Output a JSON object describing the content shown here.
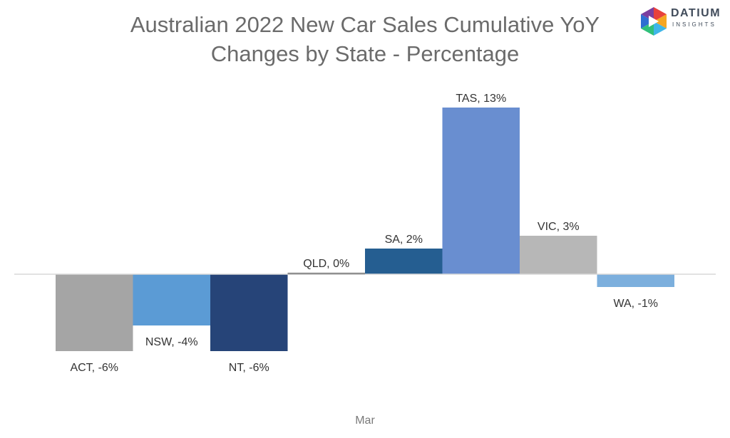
{
  "title_lines": [
    "Australian 2022 New Car Sales Cumulative YoY",
    "Changes by State - Percentage"
  ],
  "logo": {
    "name": "DATIUM",
    "sub": "INSIGHTS"
  },
  "chart_data": {
    "type": "bar",
    "title": "Australian 2022 New Car Sales Cumulative YoY Changes by State - Percentage",
    "categories": [
      "Mar"
    ],
    "x_category_label": "Mar",
    "ylim": [
      -8.5,
      15
    ],
    "grid": false,
    "legend": "none",
    "series": [
      {
        "name": "ACT",
        "value": -6,
        "label": "ACT, -6%",
        "color": "#a5a5a5"
      },
      {
        "name": "NSW",
        "value": -4,
        "label": "NSW, -4%",
        "color": "#5b9bd5"
      },
      {
        "name": "NT",
        "value": -6,
        "label": "NT, -6%",
        "color": "#264478"
      },
      {
        "name": "QLD",
        "value": 0,
        "label": "QLD, 0%",
        "color": "#636363"
      },
      {
        "name": "SA",
        "value": 2,
        "label": "SA, 2%",
        "color": "#255e91"
      },
      {
        "name": "TAS",
        "value": 13,
        "label": "TAS, 13%",
        "color": "#698ed0"
      },
      {
        "name": "VIC",
        "value": 3,
        "label": "VIC, 3%",
        "color": "#b7b7b7"
      },
      {
        "name": "WA",
        "value": -1,
        "label": "WA, -1%",
        "color": "#7cafdd"
      }
    ]
  }
}
